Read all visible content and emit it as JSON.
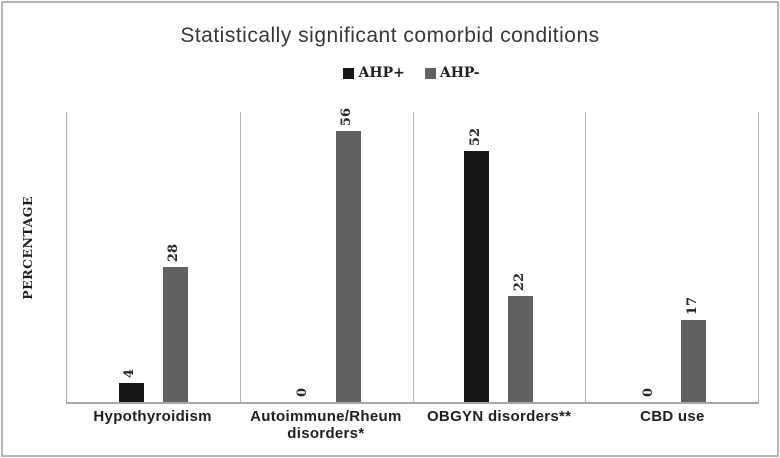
{
  "chart_data": {
    "type": "bar",
    "title": "Statistically significant comorbid conditions",
    "ylabel": "PERCENTAGE",
    "xlabel": "",
    "categories": [
      "Hypothyroidism",
      "Autoimmune/Rheum disorders*",
      "OBGYN disorders**",
      "CBD use"
    ],
    "series": [
      {
        "name": "AHP+",
        "color": "#161616",
        "values": [
          4,
          0,
          52,
          0
        ]
      },
      {
        "name": "AHP-",
        "color": "#616161",
        "values": [
          28,
          56,
          22,
          17
        ]
      }
    ],
    "ylim": [
      0,
      60
    ],
    "grid": "vertical category separators only",
    "legend_position": "top-center",
    "data_labels": "values rotated 90deg above bars"
  },
  "colors": {
    "bar_ahp_plus": "#161616",
    "bar_ahp_minus": "#616161",
    "grid_line": "#b3b3b3",
    "axis_line": "#a6a6a6",
    "outer_border": "#b5b5b5",
    "title_text": "#373737",
    "label_text": "#1f1f1f"
  }
}
